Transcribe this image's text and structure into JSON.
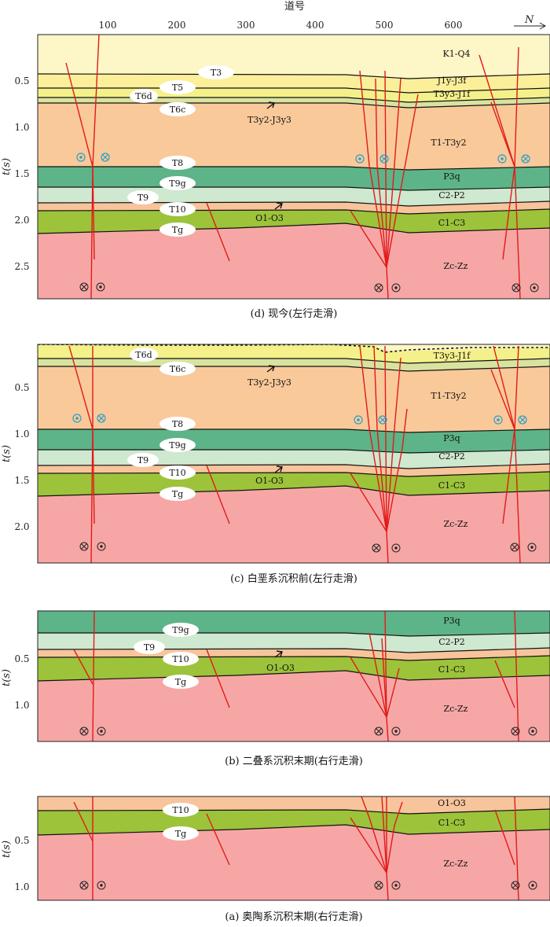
{
  "axis": {
    "top_title": "道号",
    "top_ticks": [
      "100",
      "200",
      "300",
      "400",
      "500",
      "600"
    ],
    "north_label": "N",
    "y_title": "t(s)"
  },
  "panels": [
    {
      "id": "d",
      "caption": "(d) 现今(左行走滑)",
      "y_ticks": [
        "0.5",
        "1.0",
        "1.5",
        "2.0",
        "2.5"
      ],
      "horizons": [
        "T3",
        "T5",
        "T6d",
        "T6c",
        "T8",
        "T9g",
        "T9",
        "T10",
        "Tg"
      ],
      "formations": [
        "K1-Q4",
        "J1y-J3f",
        "T3y3-J1f",
        "T3y2-J3y3",
        "T1-T3y2",
        "P3q",
        "C2-P2",
        "O1-O3",
        "C1-C3",
        "Zc-Zz"
      ]
    },
    {
      "id": "c",
      "caption": "(c) 白垩系沉积前(左行走滑)",
      "y_ticks": [
        "0.5",
        "1.0",
        "1.5",
        "2.0"
      ],
      "horizons": [
        "T6d",
        "T6c",
        "T8",
        "T9g",
        "T9",
        "T10",
        "Tg"
      ],
      "formations": [
        "T3y3-J1f",
        "T3y2-J3y3",
        "T1-T3y2",
        "P3q",
        "C2-P2",
        "O1-O3",
        "C1-C3",
        "Zc-Zz"
      ]
    },
    {
      "id": "b",
      "caption": "(b) 二叠系沉积末期(右行走滑)",
      "y_ticks": [
        "0.5",
        "1.0"
      ],
      "horizons": [
        "T9g",
        "T9",
        "T10",
        "Tg"
      ],
      "formations": [
        "P3q",
        "C2-P2",
        "O1-O3",
        "C1-C3",
        "Zc-Zz"
      ]
    },
    {
      "id": "a",
      "caption": "(a) 奥陶系沉积末期(右行走滑)",
      "y_ticks": [
        "0.5",
        "1.0"
      ],
      "horizons": [
        "T10",
        "Tg"
      ],
      "formations": [
        "O1-O3",
        "C1-C3",
        "Zc-Zz"
      ]
    }
  ],
  "colors": {
    "K1-Q4": "#fdf6c6",
    "J": "#fbef9a",
    "T3-J1": "#f4f08a",
    "T6c-band": "#d8e3a0",
    "T-orange": "#f9c99a",
    "P3q": "#5db488",
    "C2-P2": "#cfe8d0",
    "O1-O3": "#f8c49c",
    "C1-C3": "#9cc33a",
    "Zc-Zz": "#f6a7a5",
    "fault": "#e21a1a",
    "strike-slip-symbol": "#2aa0c8"
  }
}
